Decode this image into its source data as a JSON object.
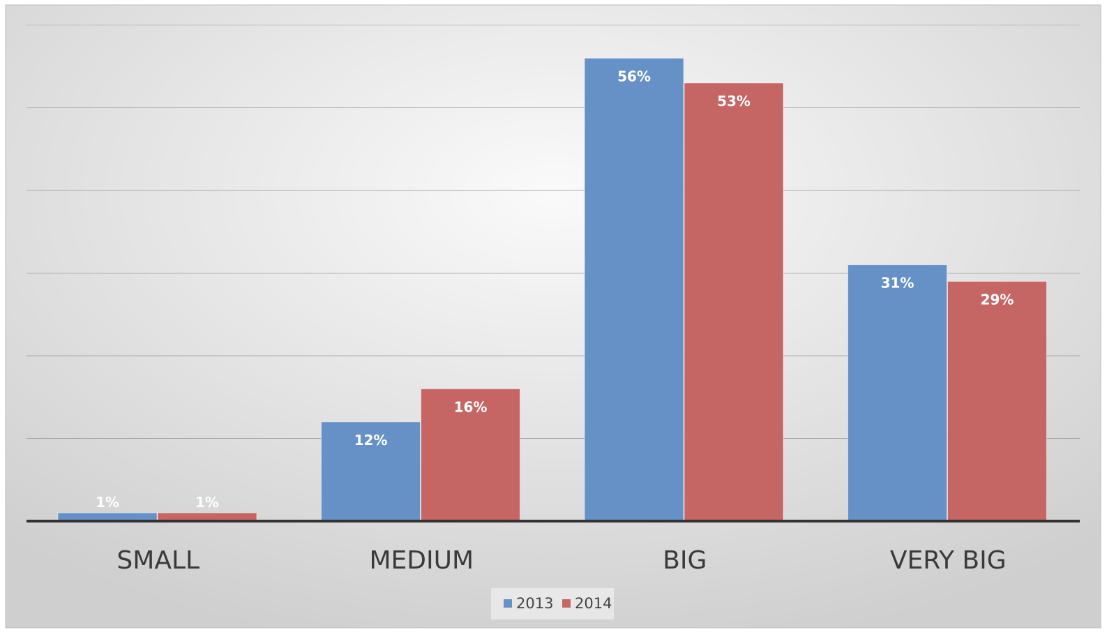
{
  "chart_data": {
    "type": "bar",
    "categories": [
      "SMALL",
      "MEDIUM",
      "BIG",
      "VERY BIG"
    ],
    "series": [
      {
        "name": "2013",
        "values": [
          1,
          12,
          56,
          31
        ],
        "labels": [
          "1%",
          "12%",
          "56%",
          "31%"
        ]
      },
      {
        "name": "2014",
        "values": [
          1,
          16,
          53,
          29
        ],
        "labels": [
          "1%",
          "16%",
          "53%",
          "29%"
        ]
      }
    ],
    "title": "",
    "xlabel": "",
    "ylabel": "",
    "ylim": [
      0,
      60
    ],
    "gridlines": true,
    "y_tick_labels_shown": false,
    "data_labels": "inside-end",
    "legend_position": "bottom-center"
  },
  "colors": {
    "2013": "#6591C6",
    "2014": "#C56664",
    "gridline": "#9A9A9A",
    "axis": "#333333",
    "category_text": "#3A3A3A",
    "data_label_text": "#FFFFFF",
    "legend_text": "#444444",
    "background_center": "#FAFAFA",
    "background_edge": "#CFCFCF"
  }
}
